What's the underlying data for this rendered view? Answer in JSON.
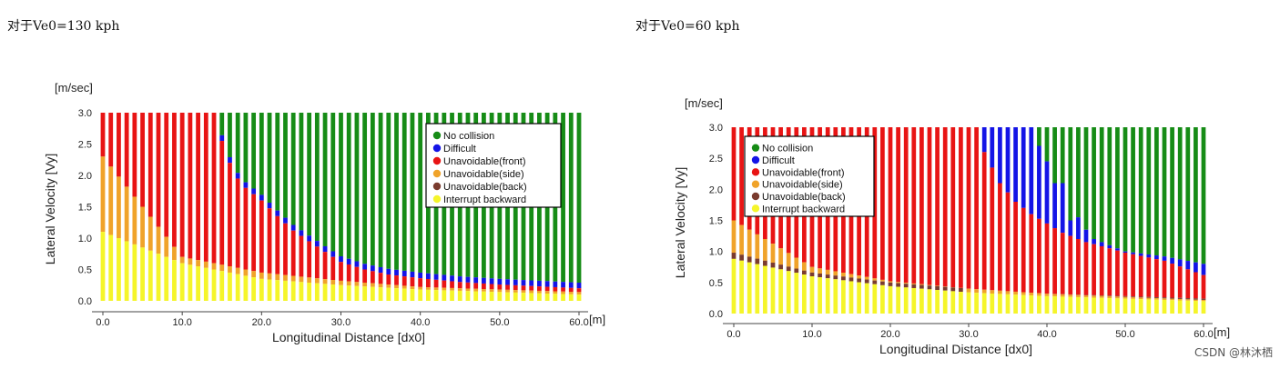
{
  "left_heading": "对于Ve0=130 kph",
  "right_heading": "对于Ve0=60 kph",
  "footer": "CSDN @林沐栖",
  "colors": {
    "no_collision": "#168c16",
    "difficult": "#1414e6",
    "unavoidable_front": "#e81414",
    "unavoidable_side": "#f0a32a",
    "unavoidable_back": "#7a3b2e",
    "interrupt_backward": "#f5f52a"
  },
  "chart_data": [
    {
      "type": "bar",
      "stacked": true,
      "ylabel": "Lateral Velocity [Vy]",
      "yunit": "[m/sec]",
      "xlabel": "Longitudinal Distance [dx0]",
      "xunit": "[m]",
      "xlim": [
        0,
        60
      ],
      "ylim": [
        0,
        3.0
      ],
      "xticks": [
        "0.0",
        "10.0",
        "20.0",
        "30.0",
        "40.0",
        "50.0",
        "60.0"
      ],
      "yticks": [
        "0.0",
        "0.5",
        "1.0",
        "1.5",
        "2.0",
        "2.5",
        "3.0"
      ],
      "legend_position": "top-right",
      "legend": [
        "No collision",
        "Difficult",
        "Unavoidable(front)",
        "Unavoidable(side)",
        "Unavoidable(back)",
        "Interrupt backward"
      ],
      "x_points": [
        [
          0,
          1.1,
          2.3,
          1.1
        ],
        [
          10,
          0.6,
          0.7,
          0.6
        ],
        [
          20,
          0.35,
          0.45,
          0.35
        ],
        [
          30,
          0.25,
          0.32,
          0.25
        ],
        [
          40,
          0.18,
          0.22,
          0.18
        ],
        [
          60,
          0.1,
          0.14,
          0.1
        ]
      ],
      "red_top_points": [
        [
          0,
          3.0
        ],
        [
          14,
          3.0
        ],
        [
          15,
          2.55
        ],
        [
          16,
          2.2
        ],
        [
          17,
          1.95
        ],
        [
          18,
          1.8
        ],
        [
          20,
          1.6
        ],
        [
          22,
          1.35
        ],
        [
          24,
          1.12
        ],
        [
          26,
          0.95
        ],
        [
          28,
          0.78
        ],
        [
          30,
          0.62
        ],
        [
          33,
          0.5
        ],
        [
          36,
          0.42
        ],
        [
          40,
          0.36
        ],
        [
          45,
          0.3
        ],
        [
          50,
          0.26
        ],
        [
          55,
          0.23
        ],
        [
          60,
          0.2
        ]
      ],
      "blue_band": 0.09
    },
    {
      "type": "bar",
      "stacked": true,
      "ylabel": "Lateral Velocity [Vy]",
      "yunit": "[m/sec]",
      "xlabel": "Longitudinal Distance [dx0]",
      "xunit": "[m]",
      "xlim": [
        0,
        60
      ],
      "ylim": [
        0,
        3.0
      ],
      "xticks": [
        "0.0",
        "10.0",
        "20.0",
        "30.0",
        "40.0",
        "50.0",
        "60.0"
      ],
      "yticks": [
        "0.0",
        "0.5",
        "1.0",
        "1.5",
        "2.0",
        "2.5",
        "3.0"
      ],
      "legend_position": "top-left",
      "legend": [
        "No collision",
        "Difficult",
        "Unavoidable(front)",
        "Unavoidable(side)",
        "Unavoidable(back)",
        "Interrupt backward"
      ],
      "x_points": [
        [
          0,
          0.88,
          1.5,
          0.98
        ],
        [
          10,
          0.6,
          0.75,
          0.66
        ],
        [
          20,
          0.44,
          0.52,
          0.5
        ],
        [
          30,
          0.34,
          0.4,
          0.4
        ],
        [
          40,
          0.28,
          0.32,
          0.32
        ],
        [
          60,
          0.2,
          0.22,
          0.24
        ]
      ],
      "red_top_points": [
        [
          0,
          3.0
        ],
        [
          31,
          3.0
        ],
        [
          32,
          2.6
        ],
        [
          34,
          2.1
        ],
        [
          36,
          1.8
        ],
        [
          38,
          1.6
        ],
        [
          40,
          1.45
        ],
        [
          42,
          1.3
        ],
        [
          45,
          1.15
        ],
        [
          48,
          1.05
        ],
        [
          50,
          0.98
        ],
        [
          55,
          0.85
        ],
        [
          60,
          0.62
        ]
      ],
      "blue_top_points": [
        [
          0,
          3.0
        ],
        [
          31,
          3.0
        ],
        [
          38,
          3.0
        ],
        [
          39,
          2.7
        ],
        [
          40,
          2.45
        ],
        [
          41,
          2.1
        ],
        [
          42,
          2.1
        ],
        [
          43,
          1.5
        ],
        [
          44,
          1.55
        ],
        [
          45,
          1.35
        ],
        [
          46,
          1.2
        ],
        [
          48,
          1.1
        ],
        [
          50,
          1.0
        ],
        [
          55,
          0.92
        ],
        [
          60,
          0.8
        ]
      ]
    }
  ]
}
